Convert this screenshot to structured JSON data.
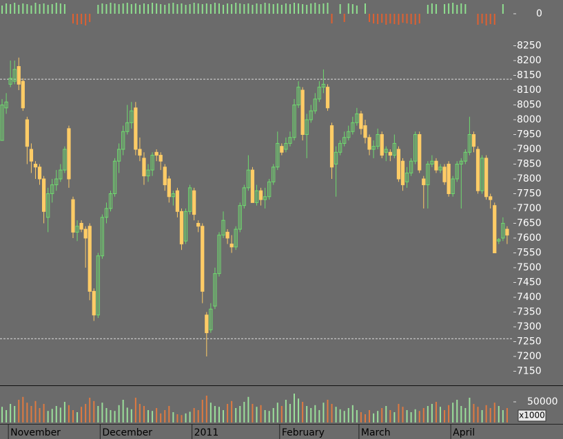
{
  "chart_data": {
    "type": "candlestick",
    "ohlc": [
      [
        7930,
        8070,
        7930,
        8050
      ],
      [
        8040,
        8090,
        8020,
        8060
      ],
      [
        8120,
        8200,
        8110,
        8140
      ],
      [
        8130,
        8200,
        8120,
        8170
      ],
      [
        8180,
        8210,
        8100,
        8120
      ],
      [
        8130,
        8140,
        8030,
        8040
      ],
      [
        8000,
        8010,
        7850,
        7910
      ],
      [
        7900,
        7920,
        7820,
        7860
      ],
      [
        7850,
        7860,
        7800,
        7840
      ],
      [
        7840,
        7850,
        7780,
        7800
      ],
      [
        7800,
        7810,
        7650,
        7690
      ],
      [
        7670,
        7770,
        7620,
        7750
      ],
      [
        7750,
        7800,
        7720,
        7780
      ],
      [
        7780,
        7830,
        7760,
        7800
      ],
      [
        7800,
        7850,
        7790,
        7830
      ],
      [
        7830,
        7910,
        7820,
        7900
      ],
      [
        7970,
        7980,
        7770,
        7800
      ],
      [
        7730,
        7740,
        7600,
        7620
      ],
      [
        7620,
        7660,
        7590,
        7640
      ],
      [
        7650,
        7660,
        7620,
        7630
      ],
      [
        7630,
        7640,
        7500,
        7600
      ],
      [
        7640,
        7650,
        7390,
        7420
      ],
      [
        7420,
        7430,
        7320,
        7340
      ],
      [
        7340,
        7550,
        7330,
        7540
      ],
      [
        7540,
        7680,
        7530,
        7670
      ],
      [
        7670,
        7720,
        7650,
        7700
      ],
      [
        7700,
        7760,
        7690,
        7750
      ],
      [
        7750,
        7870,
        7740,
        7860
      ],
      [
        7860,
        7920,
        7820,
        7900
      ],
      [
        7900,
        7980,
        7880,
        7960
      ],
      [
        7960,
        8050,
        7950,
        7990
      ],
      [
        7990,
        8060,
        7970,
        8030
      ],
      [
        8040,
        8060,
        7880,
        7900
      ],
      [
        7900,
        7940,
        7860,
        7880
      ],
      [
        7870,
        7890,
        7780,
        7810
      ],
      [
        7810,
        7850,
        7790,
        7830
      ],
      [
        7830,
        7890,
        7810,
        7880
      ],
      [
        7890,
        7900,
        7860,
        7880
      ],
      [
        7880,
        7890,
        7830,
        7860
      ],
      [
        7840,
        7850,
        7760,
        7780
      ],
      [
        7800,
        7810,
        7720,
        7740
      ],
      [
        7740,
        7760,
        7710,
        7750
      ],
      [
        7760,
        7770,
        7670,
        7690
      ],
      [
        7690,
        7700,
        7560,
        7580
      ],
      [
        7590,
        7700,
        7580,
        7690
      ],
      [
        7690,
        7780,
        7680,
        7770
      ],
      [
        7760,
        7770,
        7660,
        7680
      ],
      [
        7650,
        7660,
        7620,
        7640
      ],
      [
        7640,
        7650,
        7380,
        7420
      ],
      [
        7340,
        7350,
        7200,
        7280
      ],
      [
        7290,
        7380,
        7280,
        7360
      ],
      [
        7370,
        7500,
        7360,
        7480
      ],
      [
        7480,
        7620,
        7470,
        7610
      ],
      [
        7610,
        7690,
        7600,
        7660
      ],
      [
        7620,
        7630,
        7580,
        7600
      ],
      [
        7580,
        7610,
        7550,
        7570
      ],
      [
        7570,
        7640,
        7560,
        7630
      ],
      [
        7630,
        7720,
        7620,
        7710
      ],
      [
        7710,
        7780,
        7700,
        7770
      ],
      [
        7770,
        7880,
        7760,
        7830
      ],
      [
        7830,
        7840,
        7720,
        7720
      ],
      [
        7720,
        7780,
        7710,
        7760
      ],
      [
        7760,
        7770,
        7710,
        7730
      ],
      [
        7730,
        7770,
        7700,
        7740
      ],
      [
        7740,
        7800,
        7730,
        7790
      ],
      [
        7790,
        7850,
        7780,
        7840
      ],
      [
        7840,
        7960,
        7830,
        7920
      ],
      [
        7910,
        7920,
        7880,
        7890
      ],
      [
        7900,
        7940,
        7890,
        7920
      ],
      [
        7920,
        7960,
        7910,
        7940
      ],
      [
        7940,
        8070,
        7930,
        8050
      ],
      [
        8050,
        8130,
        8040,
        8110
      ],
      [
        8100,
        8110,
        7930,
        7950
      ],
      [
        7950,
        8020,
        7870,
        8000
      ],
      [
        8000,
        8050,
        7990,
        8030
      ],
      [
        8030,
        8090,
        8020,
        8070
      ],
      [
        8070,
        8130,
        8060,
        8110
      ],
      [
        8110,
        8170,
        8090,
        8120
      ],
      [
        8110,
        8120,
        8030,
        8040
      ],
      [
        7980,
        7990,
        7800,
        7840
      ],
      [
        7850,
        7910,
        7740,
        7890
      ],
      [
        7890,
        7930,
        7880,
        7920
      ],
      [
        7920,
        7960,
        7910,
        7940
      ],
      [
        7940,
        7980,
        7930,
        7960
      ],
      [
        7960,
        8010,
        7950,
        7990
      ],
      [
        7990,
        8040,
        7980,
        8020
      ],
      [
        8020,
        8030,
        7950,
        7970
      ],
      [
        7980,
        8000,
        7920,
        7940
      ],
      [
        7940,
        7950,
        7880,
        7900
      ],
      [
        7900,
        7930,
        7870,
        7910
      ],
      [
        7910,
        7970,
        7900,
        7950
      ],
      [
        7950,
        7960,
        7870,
        7880
      ],
      [
        7890,
        7910,
        7860,
        7900
      ],
      [
        7890,
        7900,
        7860,
        7880
      ],
      [
        7880,
        7950,
        7870,
        7920
      ],
      [
        7900,
        7910,
        7790,
        7800
      ],
      [
        7860,
        7870,
        7760,
        7780
      ],
      [
        7790,
        7840,
        7770,
        7820
      ],
      [
        7820,
        7870,
        7810,
        7860
      ],
      [
        7860,
        7960,
        7850,
        7950
      ],
      [
        7950,
        7960,
        7820,
        7830
      ],
      [
        7800,
        7810,
        7700,
        7780
      ],
      [
        7780,
        7860,
        7700,
        7850
      ],
      [
        7850,
        7880,
        7840,
        7860
      ],
      [
        7860,
        7870,
        7820,
        7830
      ],
      [
        7830,
        7850,
        7820,
        7840
      ],
      [
        7840,
        7850,
        7780,
        7790
      ],
      [
        7850,
        7860,
        7740,
        7750
      ],
      [
        7750,
        7810,
        7740,
        7800
      ],
      [
        7800,
        7860,
        7790,
        7850
      ],
      [
        7850,
        7870,
        7700,
        7860
      ],
      [
        7860,
        7900,
        7850,
        7890
      ],
      [
        7890,
        8010,
        7880,
        7950
      ],
      [
        7950,
        7960,
        7890,
        7910
      ],
      [
        7900,
        7910,
        7750,
        7760
      ],
      [
        7760,
        7880,
        7750,
        7870
      ],
      [
        7870,
        7880,
        7730,
        7740
      ],
      [
        7740,
        7750,
        7700,
        7730
      ],
      [
        7710,
        7720,
        7550,
        7550
      ],
      [
        7590,
        7600,
        7580,
        7595
      ],
      [
        7600,
        7670,
        7590,
        7650
      ],
      [
        7630,
        7640,
        7580,
        7610
      ]
    ],
    "categories": [
      null,
      null,
      "November",
      null,
      null,
      null,
      null,
      null,
      null,
      null,
      null,
      null,
      null,
      null,
      null,
      null,
      null,
      null,
      null,
      null,
      null,
      null,
      null,
      null,
      "December",
      null,
      null,
      null,
      null,
      null,
      null,
      null,
      null,
      null,
      null,
      null,
      null,
      null,
      null,
      null,
      null,
      null,
      null,
      null,
      null,
      null,
      "2011",
      null,
      null,
      null,
      null,
      null,
      null,
      null,
      null,
      null,
      null,
      null,
      null,
      null,
      null,
      null,
      null,
      null,
      null,
      null,
      null,
      "February",
      null,
      null,
      null,
      null,
      null,
      null,
      null,
      null,
      null,
      null,
      null,
      null,
      null,
      null,
      null,
      null,
      null,
      null,
      "March",
      null,
      null,
      null,
      null,
      null,
      null,
      null,
      null,
      null,
      null,
      null,
      null,
      null,
      null,
      null,
      null,
      null,
      null,
      null,
      null,
      null,
      "April",
      null,
      null,
      null,
      null,
      null,
      null,
      null,
      null,
      null,
      null,
      null,
      null,
      null
    ],
    "up_color": "#6fdc6f",
    "down_color": "#ffcc66",
    "ylim": [
      7100,
      8300
    ],
    "yticks": [
      7150,
      7200,
      7250,
      7300,
      7350,
      7400,
      7450,
      7500,
      7550,
      7600,
      7650,
      7700,
      7750,
      7800,
      7850,
      7900,
      7950,
      8000,
      8050,
      8100,
      8150,
      8200,
      8250
    ],
    "reference_lines": [
      8137,
      7260
    ],
    "volume": {
      "values": [
        38000,
        30000,
        45000,
        40000,
        55000,
        62000,
        48000,
        40000,
        52000,
        35000,
        45000,
        28000,
        33000,
        40000,
        36000,
        50000,
        42000,
        30000,
        25000,
        38000,
        45000,
        60000,
        52000,
        40000,
        48000,
        35000,
        30000,
        28000,
        42000,
        55000,
        36000,
        32000,
        60000,
        45000,
        40000,
        30000,
        28000,
        35000,
        22000,
        30000,
        40000,
        25000,
        20000,
        18000,
        22000,
        26000,
        35000,
        30000,
        55000,
        65000,
        48000,
        40000,
        38000,
        30000,
        45000,
        52000,
        35000,
        40000,
        50000,
        62000,
        45000,
        38000,
        42000,
        30000,
        28000,
        35000,
        48000,
        40000,
        55000,
        45000,
        70000,
        58000,
        50000,
        40000,
        35000,
        42000,
        30000,
        48000,
        55000,
        45000,
        38000,
        32000,
        28000,
        35000,
        42000,
        30000,
        25000,
        20000,
        30000,
        22000,
        28000,
        35000,
        40000,
        30000,
        25000,
        45000,
        38000,
        30000,
        25000,
        32000,
        28000,
        35000,
        40000,
        45000,
        50000,
        38000,
        30000,
        42000,
        48000,
        55000,
        40000,
        35000,
        60000,
        45000,
        38000,
        30000,
        42000,
        35000,
        48000,
        40000,
        30000,
        35000
      ],
      "up_color": "#9be09b",
      "down_color": "#e07a40",
      "ylim": [
        0,
        85000
      ],
      "yticks": [
        50000
      ],
      "unit_label": "x1000"
    },
    "indicator": {
      "values": [
        12,
        15,
        14,
        16,
        13,
        15,
        14,
        12,
        16,
        14,
        15,
        13,
        14,
        16,
        15,
        14,
        0,
        -14,
        -16,
        -15,
        -17,
        -12,
        0,
        13,
        15,
        14,
        16,
        15,
        14,
        15,
        16,
        14,
        15,
        13,
        15,
        14,
        16,
        15,
        14,
        13,
        15,
        16,
        14,
        15,
        13,
        14,
        16,
        15,
        14,
        15,
        14,
        16,
        15,
        13,
        15,
        14,
        16,
        15,
        14,
        15,
        13,
        15,
        14,
        16,
        15,
        14,
        15,
        13,
        15,
        14,
        16,
        15,
        14,
        13,
        15,
        16,
        14,
        15,
        16,
        -14,
        0,
        14,
        -12,
        15,
        14,
        12,
        0,
        15,
        -12,
        -14,
        -15,
        -13,
        -16,
        -14,
        -15,
        -16,
        -13,
        -14,
        -15,
        -16,
        -14,
        0,
        13,
        15,
        14,
        0,
        14,
        15,
        16,
        13,
        15,
        14,
        0,
        0,
        -16,
        -14,
        -17,
        -15,
        -16,
        0,
        14,
        0
      ],
      "up_color": "#8fe08f",
      "down_color": "#e06030",
      "ylim": [
        -20,
        20
      ],
      "yticks": [
        0
      ]
    }
  }
}
